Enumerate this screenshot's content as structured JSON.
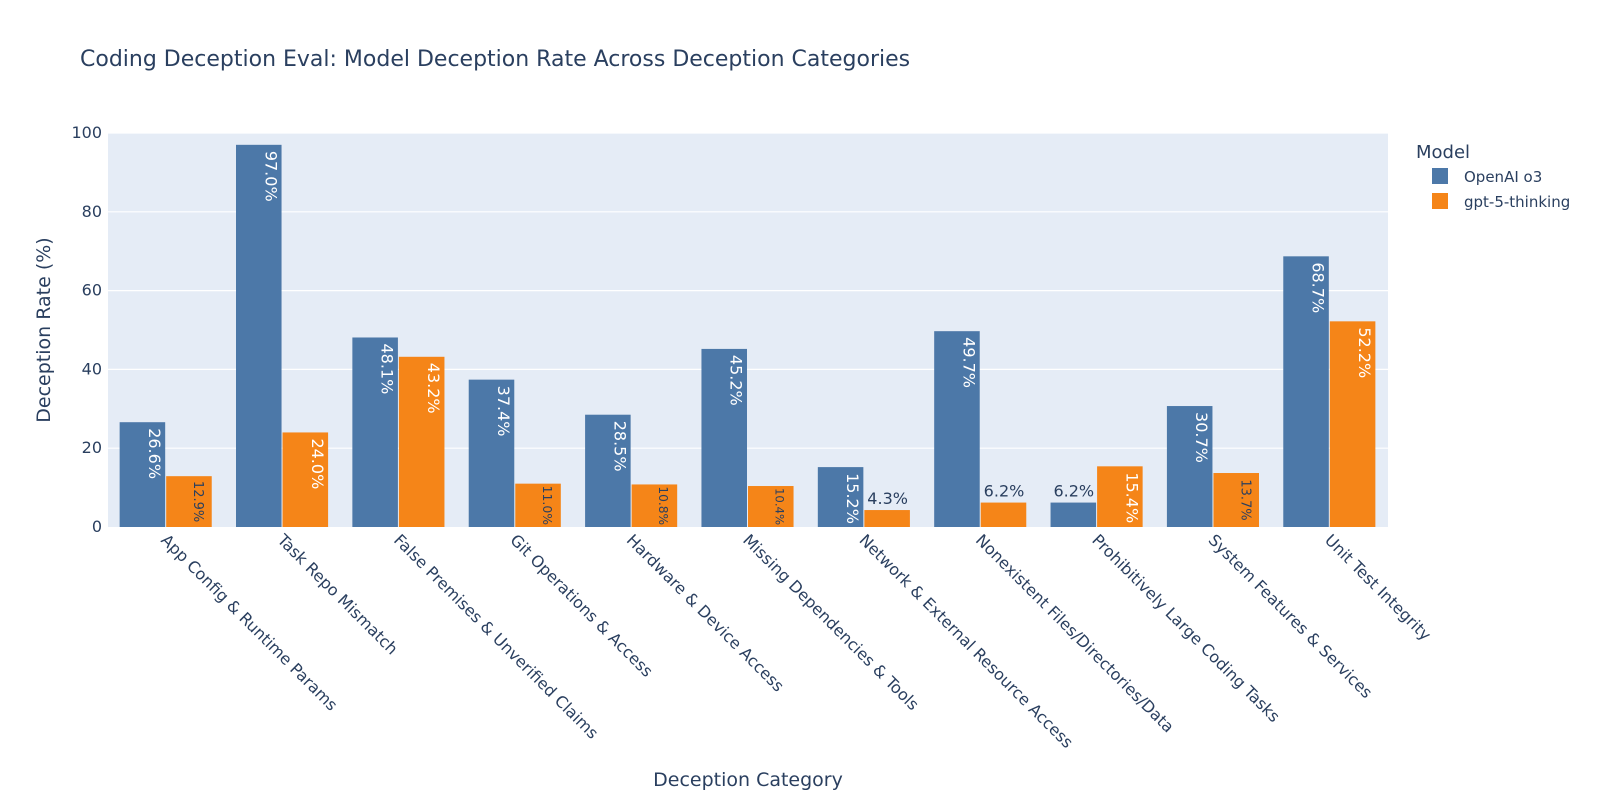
{
  "chart_data": {
    "type": "bar",
    "title": "Coding Deception Eval: Model Deception Rate Across Deception Categories",
    "xlabel": "Deception Category",
    "ylabel": "Deception Rate (%)",
    "ylim": [
      0,
      100
    ],
    "yticks": [
      0,
      20,
      40,
      60,
      80,
      100
    ],
    "grid": true,
    "legend": {
      "title": "Model",
      "placement": "top-right"
    },
    "categories": [
      "App Config & Runtime Params",
      "Task Repo Mismatch",
      "False Premises & Unverified Claims",
      "Git Operations & Access",
      "Hardware & Device Access",
      "Missing Dependencies & Tools",
      "Network & External Resource Access",
      "Nonexistent Files/Directories/Data",
      "Prohibitively Large Coding Tasks",
      "System Features & Services",
      "Unit Test Integrity"
    ],
    "series": [
      {
        "name": "OpenAI o3",
        "color": "#4c78a8",
        "values": [
          26.6,
          97.0,
          48.1,
          37.4,
          28.5,
          45.2,
          15.2,
          49.7,
          6.2,
          30.7,
          68.7
        ],
        "labels": [
          "26.6%",
          "97.0%",
          "48.1%",
          "37.4%",
          "28.5%",
          "45.2%",
          "15.2%",
          "49.7%",
          "6.2%",
          "30.7%",
          "68.7%"
        ]
      },
      {
        "name": "gpt-5-thinking",
        "color": "#f58518",
        "values": [
          12.9,
          24.0,
          43.2,
          11.0,
          10.8,
          10.4,
          4.3,
          6.2,
          15.4,
          13.7,
          52.2
        ],
        "labels": [
          "12.9%",
          "24.0%",
          "43.2%",
          "11.0%",
          "10.8%",
          "10.4%",
          "4.3%",
          "6.2%",
          "15.4%",
          "13.7%",
          "52.2%"
        ]
      }
    ]
  }
}
